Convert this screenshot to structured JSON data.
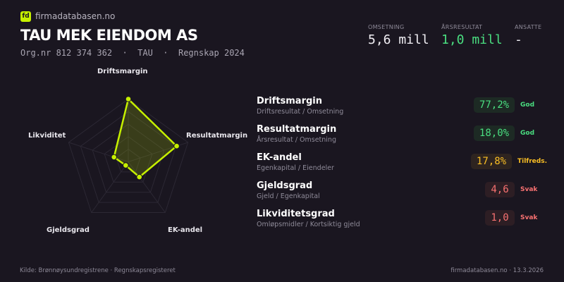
{
  "brand": {
    "logo_text": "fd",
    "name": "firmadatabasen.no"
  },
  "company": {
    "name": "TAU MEK EIENDOM AS",
    "subtitle": "Org.nr 812 374 362  ·  TAU  ·  Regnskap 2024"
  },
  "stats": [
    {
      "label": "OMSETNING",
      "value": "5,6 mill",
      "color": "#f2f0f5"
    },
    {
      "label": "ÅRSRESULTAT",
      "value": "1,0 mill",
      "color": "#4ade80"
    },
    {
      "label": "ANSATTE",
      "value": "-",
      "color": "#f2f0f5"
    }
  ],
  "chart_data": {
    "type": "radar",
    "axes": [
      "Driftsmargin",
      "Resultatmargin",
      "EK-andel",
      "Gjeldsgrad",
      "Likviditet"
    ],
    "values": [
      1.0,
      0.81,
      0.3,
      0.07,
      0.24
    ],
    "range": [
      0,
      1
    ],
    "rings": 5,
    "color": "#c6f000"
  },
  "metrics": [
    {
      "name": "Driftsmargin",
      "desc": "Driftsresultat / Omsetning",
      "value": "77,2%",
      "status": "God",
      "color": "#4ade80",
      "bg": "#1d2a24"
    },
    {
      "name": "Resultatmargin",
      "desc": "Årsresultat / Omsetning",
      "value": "18,0%",
      "status": "God",
      "color": "#4ade80",
      "bg": "#1d2a24"
    },
    {
      "name": "EK-andel",
      "desc": "Egenkapital / Eiendeler",
      "value": "17,8%",
      "status": "Tilfreds.",
      "color": "#fbbf24",
      "bg": "#2e2420"
    },
    {
      "name": "Gjeldsgrad",
      "desc": "Gjeld / Egenkapital",
      "value": "4,6",
      "status": "Svak",
      "color": "#f87171",
      "bg": "#2d1e24"
    },
    {
      "name": "Likviditetsgrad",
      "desc": "Omløpsmidler / Kortsiktig gjeld",
      "value": "1,0",
      "status": "Svak",
      "color": "#f87171",
      "bg": "#2d1e24"
    }
  ],
  "footer": {
    "source": "Kilde: Brønnøysundregistrene · Regnskapsregisteret",
    "right": "firmadatabasen.no · 13.3.2026"
  }
}
